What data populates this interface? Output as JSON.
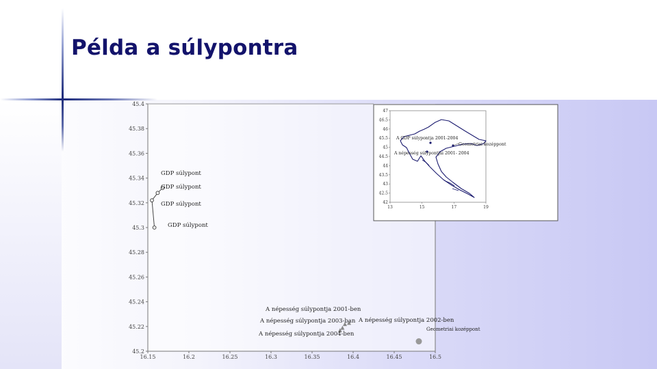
{
  "slide": {
    "title": "Példa a súlypontra"
  },
  "chart_data": {
    "type": "scatter",
    "xlim": [
      16.15,
      16.5
    ],
    "ylim": [
      45.2,
      45.4
    ],
    "x_ticks": [
      16.15,
      16.2,
      16.25,
      16.3,
      16.35,
      16.4,
      16.45,
      16.5
    ],
    "x_tick_labels": [
      "16.15",
      "16.2",
      "16.25",
      "16.3",
      "16.35",
      "16.4",
      "16.45",
      "16.5"
    ],
    "y_ticks": [
      45.2,
      45.22,
      45.24,
      45.26,
      45.28,
      45.3,
      45.32,
      45.34,
      45.36,
      45.38,
      45.4
    ],
    "y_tick_labels": [
      "45.2",
      "45.22",
      "45.24",
      "45.26",
      "45.28",
      "45.3",
      "45.32",
      "45.34",
      "45.36",
      "45.38",
      "45.4"
    ],
    "gdp_points": [
      {
        "x": 16.168,
        "y": 45.332,
        "label": "GDP súlypont"
      },
      {
        "x": 16.162,
        "y": 45.328,
        "label": "GDP súlypont"
      },
      {
        "x": 16.155,
        "y": 45.322,
        "label": "GDP súlypont"
      },
      {
        "x": 16.158,
        "y": 45.3,
        "label": "GDP súlypont"
      }
    ],
    "population_points": [
      {
        "x": 16.39,
        "y": 45.222,
        "label": "A népesség súlypontja 2001-ben"
      },
      {
        "x": 16.395,
        "y": 45.223,
        "label": "A népesség súlypontja 2002-ben"
      },
      {
        "x": 16.387,
        "y": 45.219,
        "label": "A népesség súlypontja 2003-ban"
      },
      {
        "x": 16.384,
        "y": 45.217,
        "label": "A népesség súlypontja 2004-ben"
      }
    ],
    "geometric_center": {
      "x": 16.48,
      "y": 45.208,
      "label": "Geometriai kozéppont"
    },
    "colors": {
      "gdp": "#444444",
      "population": "#888888",
      "center": "#999999",
      "axis": "#666666"
    },
    "inset": {
      "type": "map",
      "xlim": [
        13,
        19
      ],
      "ylim": [
        42,
        47
      ],
      "x_tick_labels": [
        "13",
        "15",
        "17",
        "19"
      ],
      "y_tick_labels": [
        "47",
        "46.5",
        "46",
        "45.5",
        "45",
        "44.5",
        "44",
        "43.5",
        "43",
        "42.5",
        "42"
      ],
      "annotations": [
        {
          "text": "A GDP súlypontja 2001-2004"
        },
        {
          "text": "Geometriai kozéppont"
        },
        {
          "text": "A népesség súlypontjai 2001- 2004"
        }
      ],
      "border_color": "#1a1a6e"
    }
  }
}
